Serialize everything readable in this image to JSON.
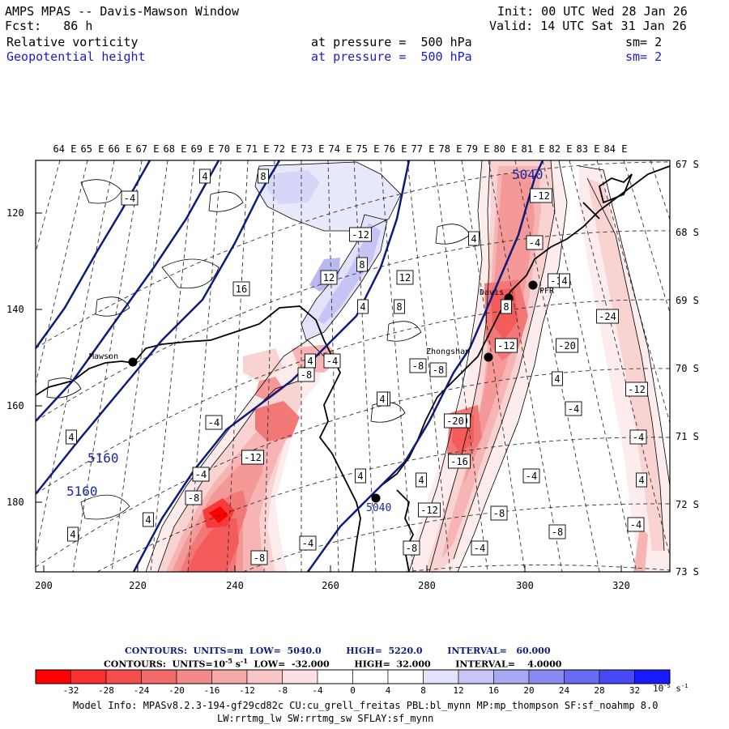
{
  "header": {
    "title": "AMPS MPAS -- Davis-Mawson Window",
    "forecast": "Fcst:   86 h",
    "init": "Init: 00 UTC Wed 28 Jan 26",
    "valid": "Valid: 14 UTC Sat 31 Jan 26",
    "field1_name": "Relative vorticity",
    "field1_level": "at pressure =  500 hPa",
    "field1_sm": "sm= 2",
    "field2_name": "Geopotential height",
    "field2_level": "at pressure =  500 hPa",
    "field2_sm": "sm= 2"
  },
  "map": {
    "top_lon_labels": [
      "64 E",
      "65 E",
      "66 E",
      "67 E",
      "68 E",
      "69 E",
      "70 E",
      "71 E",
      "72 E",
      "73 E",
      "74 E",
      "75 E",
      "76 E",
      "77 E",
      "78 E",
      "79 E",
      "80 E",
      "81 E",
      "82 E",
      "83 E",
      "84 E"
    ],
    "right_lat_labels": [
      "67 S",
      "68 S",
      "69 S",
      "70 S",
      "71 S",
      "72 S",
      "73 S"
    ],
    "left_y_ticks": [
      "120",
      "140",
      "160",
      "180"
    ],
    "bottom_x_ticks": [
      "200",
      "220",
      "240",
      "260",
      "280",
      "300",
      "320"
    ],
    "stations": [
      {
        "name": "Mawson"
      },
      {
        "name": "Davis"
      },
      {
        "name": "Zhongshan"
      },
      {
        "name": "PFR"
      }
    ],
    "height_contour_labels": [
      "5040",
      "5160",
      "5160",
      "5040"
    ],
    "vorticity_labels": [
      "4",
      "8",
      "-4",
      "4",
      "4",
      "-4",
      "-12",
      "-16",
      "-12",
      "8",
      "12",
      "16",
      "12",
      "4",
      "8",
      "4",
      "8",
      "-12",
      "-24",
      "-20",
      "-8",
      "-8",
      "4",
      "4",
      "4",
      "-4",
      "-8",
      "-12",
      "-20",
      "4",
      "-4",
      "-16",
      "-4",
      "4",
      "-12",
      "-8",
      "-4",
      "-8",
      "-4",
      "-12",
      "-20",
      "4",
      "4",
      "-8",
      "-4",
      "-8",
      "4",
      "4",
      "-8",
      "-4",
      "-4",
      "4",
      "-12",
      "-8",
      "-4"
    ]
  },
  "contour_info": {
    "line1": "CONTOURS:  UNITS=m  LOW=  5040.0        HIGH=  5220.0        INTERVAL=   60.000",
    "line2_a": "CONTOURS:  UNITS=10",
    "line2_exp": "-5",
    "line2_b": " s",
    "line2_exp2": "-1",
    "line2_c": "  LOW=  -32.000        HIGH=  32.000        INTERVAL=    4.0000"
  },
  "colorbar": {
    "labels": [
      "-32",
      "-28",
      "-24",
      "-20",
      "-16",
      "-12",
      "-8",
      "-4",
      "0",
      "4",
      "8",
      "12",
      "16",
      "20",
      "24",
      "28",
      "32"
    ],
    "unit_a": "10",
    "unit_exp": "-5",
    "unit_b": " s",
    "unit_exp2": "-1",
    "colors": [
      "#ff0000",
      "#f73a3a",
      "#f45c5c",
      "#f27878",
      "#f49898",
      "#f6b4b4",
      "#f9d2d2",
      "#fdecec",
      "#ffffff",
      "#ffffff",
      "#e8e8fb",
      "#c8c8f6",
      "#a8a8f2",
      "#8080ee",
      "#5858ee",
      "#3030f4",
      "#0000ff"
    ]
  },
  "footer": {
    "line1": "Model Info: MPASv8.2.3-194-gf29cd82c CU:cu_grell_freitas PBL:bl_mynn MP:mp_thompson SF:sf_noahmp 8.0",
    "line2": "LW:rrtmg_lw SW:rrtmg_sw SFLAY:sf_mynn"
  }
}
